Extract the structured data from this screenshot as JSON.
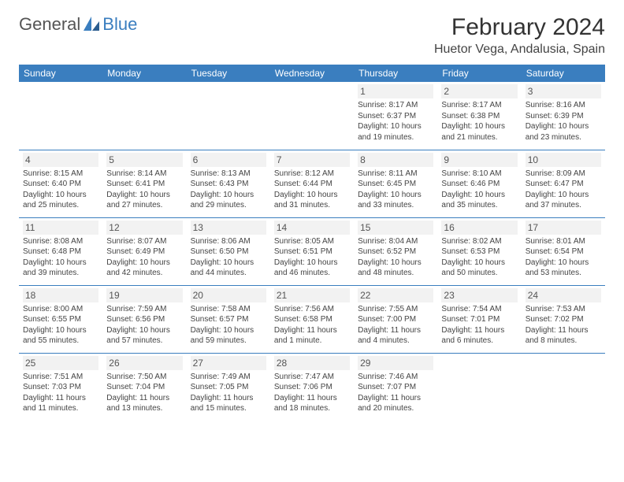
{
  "logo": {
    "general": "General",
    "blue": "Blue"
  },
  "title": "February 2024",
  "location": "Huetor Vega, Andalusia, Spain",
  "colors": {
    "header_bg": "#3a7ebf",
    "header_fg": "#ffffff",
    "border": "#3a7ebf",
    "daynum_bg": "#f2f2f2"
  },
  "weekdays": [
    "Sunday",
    "Monday",
    "Tuesday",
    "Wednesday",
    "Thursday",
    "Friday",
    "Saturday"
  ],
  "weeks": [
    [
      {
        "n": "",
        "sr": "",
        "ss": "",
        "dl": ""
      },
      {
        "n": "",
        "sr": "",
        "ss": "",
        "dl": ""
      },
      {
        "n": "",
        "sr": "",
        "ss": "",
        "dl": ""
      },
      {
        "n": "",
        "sr": "",
        "ss": "",
        "dl": ""
      },
      {
        "n": "1",
        "sr": "Sunrise: 8:17 AM",
        "ss": "Sunset: 6:37 PM",
        "dl": "Daylight: 10 hours and 19 minutes."
      },
      {
        "n": "2",
        "sr": "Sunrise: 8:17 AM",
        "ss": "Sunset: 6:38 PM",
        "dl": "Daylight: 10 hours and 21 minutes."
      },
      {
        "n": "3",
        "sr": "Sunrise: 8:16 AM",
        "ss": "Sunset: 6:39 PM",
        "dl": "Daylight: 10 hours and 23 minutes."
      }
    ],
    [
      {
        "n": "4",
        "sr": "Sunrise: 8:15 AM",
        "ss": "Sunset: 6:40 PM",
        "dl": "Daylight: 10 hours and 25 minutes."
      },
      {
        "n": "5",
        "sr": "Sunrise: 8:14 AM",
        "ss": "Sunset: 6:41 PM",
        "dl": "Daylight: 10 hours and 27 minutes."
      },
      {
        "n": "6",
        "sr": "Sunrise: 8:13 AM",
        "ss": "Sunset: 6:43 PM",
        "dl": "Daylight: 10 hours and 29 minutes."
      },
      {
        "n": "7",
        "sr": "Sunrise: 8:12 AM",
        "ss": "Sunset: 6:44 PM",
        "dl": "Daylight: 10 hours and 31 minutes."
      },
      {
        "n": "8",
        "sr": "Sunrise: 8:11 AM",
        "ss": "Sunset: 6:45 PM",
        "dl": "Daylight: 10 hours and 33 minutes."
      },
      {
        "n": "9",
        "sr": "Sunrise: 8:10 AM",
        "ss": "Sunset: 6:46 PM",
        "dl": "Daylight: 10 hours and 35 minutes."
      },
      {
        "n": "10",
        "sr": "Sunrise: 8:09 AM",
        "ss": "Sunset: 6:47 PM",
        "dl": "Daylight: 10 hours and 37 minutes."
      }
    ],
    [
      {
        "n": "11",
        "sr": "Sunrise: 8:08 AM",
        "ss": "Sunset: 6:48 PM",
        "dl": "Daylight: 10 hours and 39 minutes."
      },
      {
        "n": "12",
        "sr": "Sunrise: 8:07 AM",
        "ss": "Sunset: 6:49 PM",
        "dl": "Daylight: 10 hours and 42 minutes."
      },
      {
        "n": "13",
        "sr": "Sunrise: 8:06 AM",
        "ss": "Sunset: 6:50 PM",
        "dl": "Daylight: 10 hours and 44 minutes."
      },
      {
        "n": "14",
        "sr": "Sunrise: 8:05 AM",
        "ss": "Sunset: 6:51 PM",
        "dl": "Daylight: 10 hours and 46 minutes."
      },
      {
        "n": "15",
        "sr": "Sunrise: 8:04 AM",
        "ss": "Sunset: 6:52 PM",
        "dl": "Daylight: 10 hours and 48 minutes."
      },
      {
        "n": "16",
        "sr": "Sunrise: 8:02 AM",
        "ss": "Sunset: 6:53 PM",
        "dl": "Daylight: 10 hours and 50 minutes."
      },
      {
        "n": "17",
        "sr": "Sunrise: 8:01 AM",
        "ss": "Sunset: 6:54 PM",
        "dl": "Daylight: 10 hours and 53 minutes."
      }
    ],
    [
      {
        "n": "18",
        "sr": "Sunrise: 8:00 AM",
        "ss": "Sunset: 6:55 PM",
        "dl": "Daylight: 10 hours and 55 minutes."
      },
      {
        "n": "19",
        "sr": "Sunrise: 7:59 AM",
        "ss": "Sunset: 6:56 PM",
        "dl": "Daylight: 10 hours and 57 minutes."
      },
      {
        "n": "20",
        "sr": "Sunrise: 7:58 AM",
        "ss": "Sunset: 6:57 PM",
        "dl": "Daylight: 10 hours and 59 minutes."
      },
      {
        "n": "21",
        "sr": "Sunrise: 7:56 AM",
        "ss": "Sunset: 6:58 PM",
        "dl": "Daylight: 11 hours and 1 minute."
      },
      {
        "n": "22",
        "sr": "Sunrise: 7:55 AM",
        "ss": "Sunset: 7:00 PM",
        "dl": "Daylight: 11 hours and 4 minutes."
      },
      {
        "n": "23",
        "sr": "Sunrise: 7:54 AM",
        "ss": "Sunset: 7:01 PM",
        "dl": "Daylight: 11 hours and 6 minutes."
      },
      {
        "n": "24",
        "sr": "Sunrise: 7:53 AM",
        "ss": "Sunset: 7:02 PM",
        "dl": "Daylight: 11 hours and 8 minutes."
      }
    ],
    [
      {
        "n": "25",
        "sr": "Sunrise: 7:51 AM",
        "ss": "Sunset: 7:03 PM",
        "dl": "Daylight: 11 hours and 11 minutes."
      },
      {
        "n": "26",
        "sr": "Sunrise: 7:50 AM",
        "ss": "Sunset: 7:04 PM",
        "dl": "Daylight: 11 hours and 13 minutes."
      },
      {
        "n": "27",
        "sr": "Sunrise: 7:49 AM",
        "ss": "Sunset: 7:05 PM",
        "dl": "Daylight: 11 hours and 15 minutes."
      },
      {
        "n": "28",
        "sr": "Sunrise: 7:47 AM",
        "ss": "Sunset: 7:06 PM",
        "dl": "Daylight: 11 hours and 18 minutes."
      },
      {
        "n": "29",
        "sr": "Sunrise: 7:46 AM",
        "ss": "Sunset: 7:07 PM",
        "dl": "Daylight: 11 hours and 20 minutes."
      },
      {
        "n": "",
        "sr": "",
        "ss": "",
        "dl": ""
      },
      {
        "n": "",
        "sr": "",
        "ss": "",
        "dl": ""
      }
    ]
  ]
}
